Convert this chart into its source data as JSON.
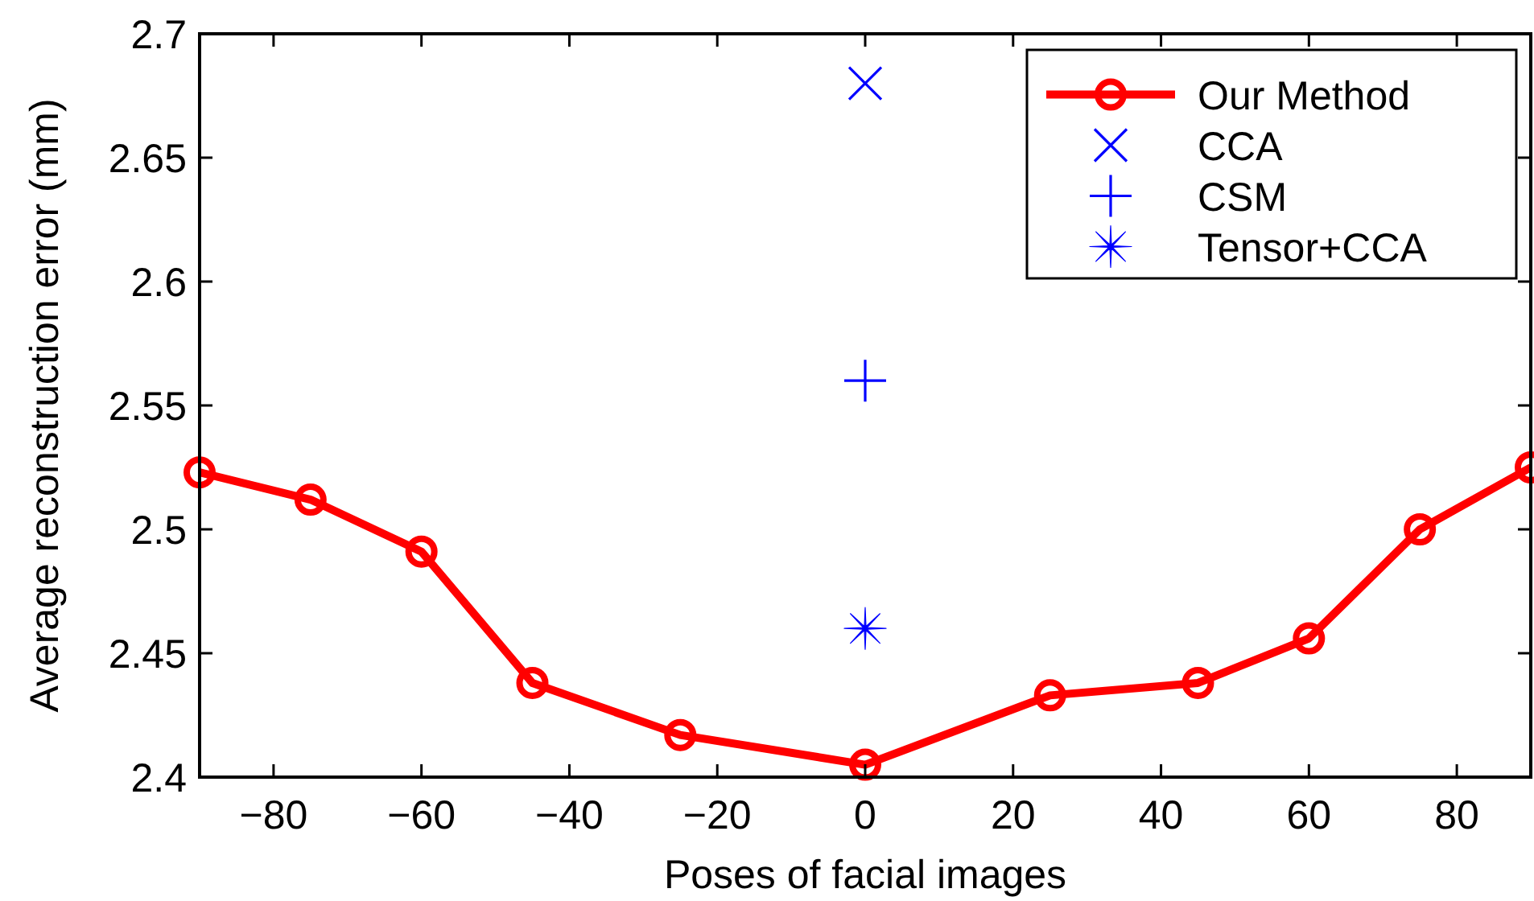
{
  "chart_data": {
    "type": "line",
    "xlabel": "Poses of facial images",
    "ylabel": "Average reconstruction error (mm)",
    "xlim": [
      -90,
      90
    ],
    "xticks": [
      {
        "value": -80,
        "label": "−80"
      },
      {
        "value": -60,
        "label": "−60"
      },
      {
        "value": -40,
        "label": "−40"
      },
      {
        "value": -20,
        "label": "−20"
      },
      0,
      20,
      40,
      60,
      80
    ],
    "ylim": [
      2.4,
      2.7
    ],
    "yticks": [
      2.4,
      2.45,
      2.5,
      2.55,
      2.6,
      2.65,
      2.7
    ],
    "grid": false,
    "legend": "top right",
    "series": [
      {
        "name": "Our Method",
        "color": "#ff0000",
        "marker": "circle",
        "line_style": "solid",
        "x": [
          -90,
          -75,
          -60,
          -45,
          -25,
          0,
          25,
          45,
          60,
          75,
          90
        ],
        "values": [
          2.523,
          2.512,
          2.491,
          2.438,
          2.417,
          2.405,
          2.433,
          2.438,
          2.456,
          2.5,
          2.525
        ]
      },
      {
        "name": "CCA",
        "type": "scatter",
        "color": "#0000ff",
        "marker": "cross",
        "x": [
          0
        ],
        "values": [
          2.68
        ]
      },
      {
        "name": "CSM",
        "type": "scatter",
        "color": "#0000ff",
        "x": [
          0
        ],
        "values": [
          2.56
        ]
      },
      {
        "name": "Tensor+CCA",
        "type": "scatter",
        "color": "#0000ff",
        "marker": "star",
        "x": [
          0
        ],
        "values": [
          2.46
        ]
      }
    ]
  }
}
